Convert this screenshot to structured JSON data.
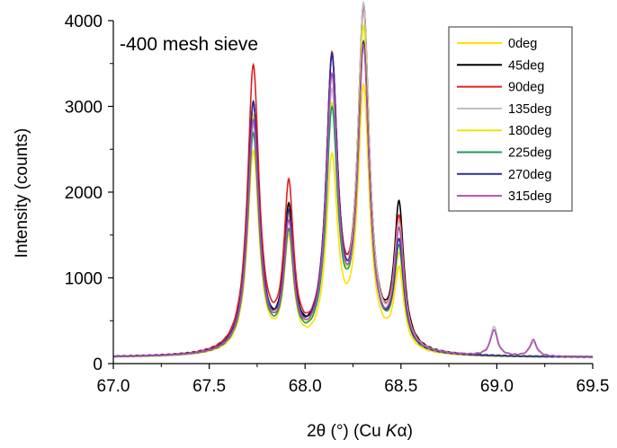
{
  "chart_data": {
    "type": "line",
    "annotation": "-400 mesh sieve",
    "xlabel_parts": [
      "2θ (°) (Cu ",
      "K",
      "α)"
    ],
    "ylabel": "Intensity (counts)",
    "xlim": [
      67.0,
      69.5
    ],
    "ylim": [
      0,
      4000
    ],
    "xticks": [
      "67.0",
      "67.5",
      "68.0",
      "68.5",
      "69.0",
      "69.5"
    ],
    "yticks": [
      "0",
      "1000",
      "2000",
      "3000",
      "4000"
    ],
    "grid": false,
    "legend_position": "top-right",
    "series": [
      {
        "name": "0deg",
        "color": "#FFE000",
        "peaks": [
          2350,
          1270,
          2200,
          3050,
          920
        ],
        "satellites": [
          0,
          0
        ]
      },
      {
        "name": "45deg",
        "color": "#000000",
        "peaks": [
          2900,
          1580,
          3300,
          3920,
          1640
        ],
        "satellites": [
          0,
          0
        ]
      },
      {
        "name": "90deg",
        "color": "#E02020",
        "peaks": [
          3330,
          1840,
          3320,
          3880,
          1480
        ],
        "satellites": [
          0,
          0
        ]
      },
      {
        "name": "135deg",
        "color": "#BEBEBE",
        "peaks": [
          2650,
          1450,
          2900,
          3950,
          1400
        ],
        "satellites": [
          340,
          160
        ]
      },
      {
        "name": "180deg",
        "color": "#E8E800",
        "peaks": [
          2750,
          1480,
          2750,
          3700,
          1050
        ],
        "satellites": [
          0,
          0
        ]
      },
      {
        "name": "225deg",
        "color": "#1E9A5A",
        "peaks": [
          2550,
          1310,
          2720,
          3500,
          1150
        ],
        "satellites": [
          0,
          0
        ]
      },
      {
        "name": "270deg",
        "color": "#2B2BA0",
        "peaks": [
          2900,
          1500,
          3330,
          3480,
          1220
        ],
        "satellites": [
          0,
          0
        ]
      },
      {
        "name": "315deg",
        "color": "#B050B0",
        "peaks": [
          2700,
          1400,
          3100,
          3450,
          1350
        ],
        "satellites": [
          300,
          190
        ]
      }
    ],
    "peak_positions": [
      67.73,
      67.915,
      68.14,
      68.305,
      68.49
    ],
    "satellite_positions": [
      68.985,
      69.19
    ],
    "baseline": 70
  }
}
